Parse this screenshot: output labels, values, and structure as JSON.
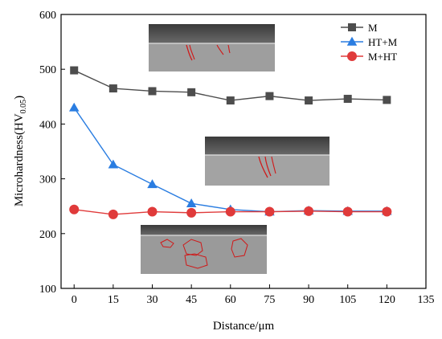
{
  "chart_data": {
    "type": "line",
    "title": "",
    "xlabel": "Distance/μm",
    "ylabel_main": "Microhardness(HV",
    "ylabel_sub": "0.05",
    "ylabel_close": ")",
    "xlim": [
      -5,
      135
    ],
    "ylim": [
      100,
      600
    ],
    "xticks": [
      0,
      15,
      30,
      45,
      60,
      75,
      90,
      105,
      120,
      135
    ],
    "yticks": [
      100,
      200,
      300,
      400,
      500,
      600
    ],
    "grid": false,
    "legend_position": "top-right",
    "x": [
      0,
      15,
      30,
      45,
      60,
      75,
      90,
      105,
      120
    ],
    "series": [
      {
        "name": "M",
        "color": "#4d4d4d",
        "marker": "square",
        "values": [
          498,
          465,
          460,
          458,
          443,
          451,
          443,
          446,
          444
        ]
      },
      {
        "name": "HT+M",
        "color": "#2a7de1",
        "marker": "triangle",
        "values": [
          430,
          326,
          290,
          255,
          244,
          240,
          242,
          241,
          241
        ]
      },
      {
        "name": "M+HT",
        "color": "#e03a3a",
        "marker": "circle",
        "values": [
          244,
          235,
          240,
          238,
          240,
          240,
          241,
          240,
          240
        ]
      }
    ]
  }
}
